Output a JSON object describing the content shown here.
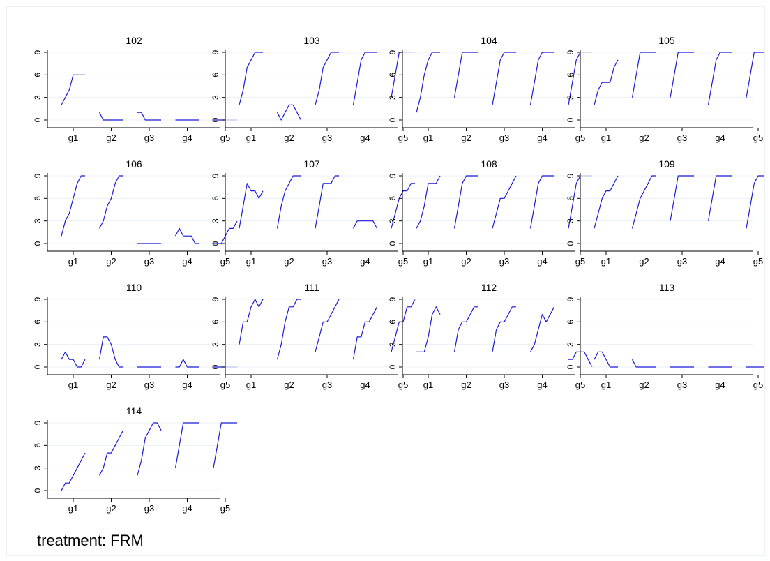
{
  "chart_data": {
    "type": "line",
    "layout": "small-multiples",
    "y_ticks": [
      0,
      3,
      6,
      9
    ],
    "ylim": [
      0,
      9
    ],
    "x_tick_labels": [
      "g1",
      "g2",
      "g3",
      "g4",
      "g5"
    ],
    "grid": "horizontal",
    "note": "treatment: FRM",
    "panels": [
      {
        "title": "102",
        "segments": [
          [
            2,
            3,
            4,
            6,
            6,
            6,
            6
          ],
          [
            1,
            0,
            0,
            0,
            0,
            0,
            0
          ],
          [
            1,
            1,
            0,
            0,
            0,
            0,
            0
          ],
          [
            0,
            0,
            0,
            0,
            0,
            0,
            0
          ],
          [
            0,
            0,
            0,
            0,
            0,
            0,
            0
          ]
        ]
      },
      {
        "title": "103",
        "segments": [
          [
            2,
            4,
            7,
            8,
            9,
            9,
            9
          ],
          [
            1,
            0,
            1,
            2,
            2,
            1,
            0
          ],
          [
            2,
            4,
            7,
            8,
            9,
            9,
            9
          ],
          [
            2,
            5,
            8,
            9,
            9,
            9,
            9
          ],
          [
            3,
            6,
            9,
            9,
            9,
            9,
            9
          ]
        ]
      },
      {
        "title": "104",
        "segments": [
          [
            1,
            3,
            6,
            8,
            9,
            9,
            9
          ],
          [
            3,
            6,
            9,
            9,
            9,
            9,
            9
          ],
          [
            2,
            5,
            8,
            9,
            9,
            9,
            9
          ],
          [
            2,
            5,
            8,
            9,
            9,
            9,
            9
          ],
          [
            2,
            5,
            8,
            9,
            9,
            9,
            9
          ]
        ]
      },
      {
        "title": "105",
        "segments": [
          [
            2,
            4,
            5,
            5,
            5,
            7,
            8
          ],
          [
            3,
            6,
            9,
            9,
            9,
            9,
            9
          ],
          [
            3,
            6,
            9,
            9,
            9,
            9,
            9
          ],
          [
            2,
            5,
            8,
            9,
            9,
            9,
            9
          ],
          [
            3,
            6,
            9,
            9,
            9,
            9,
            9
          ]
        ]
      },
      {
        "title": "106",
        "segments": [
          [
            1,
            3,
            4,
            6,
            8,
            9,
            9
          ],
          [
            2,
            3,
            5,
            6,
            8,
            9,
            9
          ],
          [
            0,
            0,
            0,
            0,
            0,
            0,
            0
          ],
          [
            1,
            2,
            1,
            1,
            1,
            0,
            0
          ],
          [
            0,
            0,
            0,
            1,
            2,
            2,
            3
          ]
        ]
      },
      {
        "title": "107",
        "segments": [
          [
            2,
            5,
            8,
            7,
            7,
            6,
            7
          ],
          [
            2,
            5,
            7,
            8,
            9,
            9,
            9
          ],
          [
            2,
            5,
            8,
            8,
            8,
            9,
            9
          ],
          [
            2,
            3,
            3,
            3,
            3,
            3,
            2
          ],
          [
            2,
            4,
            6,
            7,
            7,
            8,
            8
          ]
        ]
      },
      {
        "title": "108",
        "segments": [
          [
            2,
            3,
            5,
            8,
            8,
            8,
            9
          ],
          [
            2,
            5,
            8,
            9,
            9,
            9,
            9
          ],
          [
            2,
            4,
            6,
            6,
            7,
            8,
            9
          ],
          [
            2,
            5,
            8,
            9,
            9,
            9,
            9
          ],
          [
            2,
            5,
            8,
            9,
            9,
            9,
            9
          ]
        ]
      },
      {
        "title": "109",
        "segments": [
          [
            2,
            4,
            6,
            7,
            7,
            8,
            9
          ],
          [
            2,
            4,
            6,
            7,
            8,
            9,
            9
          ],
          [
            3,
            6,
            9,
            9,
            9,
            9,
            9
          ],
          [
            3,
            6,
            9,
            9,
            9,
            9,
            9
          ],
          [
            2,
            5,
            8,
            9,
            9,
            9,
            9
          ]
        ]
      },
      {
        "title": "110",
        "segments": [
          [
            1,
            2,
            1,
            1,
            0,
            0,
            1
          ],
          [
            1,
            4,
            4,
            3,
            1,
            0,
            0
          ],
          [
            0,
            0,
            0,
            0,
            0,
            0,
            0
          ],
          [
            0,
            0,
            1,
            0,
            0,
            0,
            0
          ],
          [
            0,
            0,
            0,
            0,
            0,
            0,
            0
          ]
        ]
      },
      {
        "title": "111",
        "segments": [
          [
            3,
            6,
            6,
            8,
            9,
            8,
            9
          ],
          [
            1,
            3,
            6,
            8,
            8,
            9,
            9
          ],
          [
            2,
            4,
            6,
            6,
            7,
            8,
            9
          ],
          [
            1,
            4,
            4,
            6,
            6,
            7,
            8
          ],
          [
            2,
            4,
            6,
            6,
            8,
            8,
            9
          ]
        ]
      },
      {
        "title": "112",
        "segments": [
          [
            2,
            2,
            2,
            4,
            7,
            8,
            7
          ],
          [
            2,
            5,
            6,
            6,
            7,
            8,
            8
          ],
          [
            2,
            5,
            6,
            6,
            7,
            8,
            8
          ],
          [
            2,
            3,
            5,
            7,
            6,
            7,
            8
          ],
          [
            1,
            1,
            2,
            2,
            2,
            1,
            0
          ]
        ]
      },
      {
        "title": "113",
        "segments": [
          [
            1,
            2,
            2,
            1,
            0,
            0,
            0
          ],
          [
            1,
            0,
            0,
            0,
            0,
            0,
            0
          ],
          [
            0,
            0,
            0,
            0,
            0,
            0,
            0
          ],
          [
            0,
            0,
            0,
            0,
            0,
            0,
            0
          ],
          [
            0,
            0,
            0,
            0,
            0,
            0,
            0
          ]
        ]
      },
      {
        "title": "114",
        "segments": [
          [
            0,
            1,
            1,
            2,
            3,
            4,
            5
          ],
          [
            2,
            3,
            5,
            5,
            6,
            7,
            8
          ],
          [
            2,
            4,
            7,
            8,
            9,
            9,
            8
          ],
          [
            3,
            6,
            9,
            9,
            9,
            9,
            9
          ],
          [
            3,
            6,
            9,
            9,
            9,
            9,
            9
          ]
        ]
      }
    ]
  }
}
